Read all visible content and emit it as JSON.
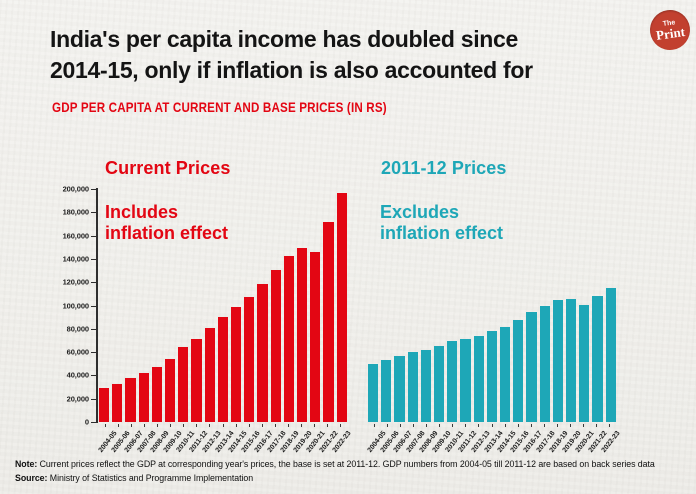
{
  "title": {
    "line1": "India's per capita income has doubled since",
    "line2": "2014-15, only if inflation is also accounted for"
  },
  "subtitle": "GDP PER CAPITA AT CURRENT AND BASE PRICES (IN RS)",
  "logo": {
    "top": "The",
    "bottom": "Print",
    "bg_color": "#c2402f"
  },
  "colors": {
    "red": "#e30613",
    "teal": "#1ea7b7",
    "ink": "#141414",
    "paper": "#f2f1ed"
  },
  "left_chart": {
    "header": "Current Prices",
    "annotation_line1": "Includes",
    "annotation_line2": "inflation effect"
  },
  "right_chart": {
    "header": "2011-12 Prices",
    "annotation_line1": "Excludes",
    "annotation_line2": "inflation effect"
  },
  "chart_data": [
    {
      "type": "bar",
      "title": "Current Prices",
      "annotation": "Includes inflation effect",
      "color": "#e30613",
      "ylim": [
        0,
        200000
      ],
      "yticks": [
        0,
        20000,
        40000,
        60000,
        80000,
        100000,
        120000,
        140000,
        160000,
        180000,
        200000
      ],
      "grid": false,
      "categories": [
        "2004-05",
        "2005-06",
        "2006-07",
        "2007-08",
        "2008-09",
        "2009-10",
        "2010-11",
        "2011-12",
        "2012-13",
        "2013-14",
        "2014-15",
        "2015-16",
        "2016-17",
        "2017-18",
        "2018-19",
        "2019-20",
        "2020-21",
        "2021-22",
        "2022-23"
      ],
      "values": [
        29500,
        33000,
        38000,
        42500,
        47500,
        54500,
        64000,
        71600,
        80500,
        89800,
        98400,
        107300,
        118300,
        130100,
        142300,
        149700,
        146300,
        172000,
        197000
      ]
    },
    {
      "type": "bar",
      "title": "2011-12 Prices",
      "annotation": "Excludes inflation effect",
      "color": "#1ea7b7",
      "ylim": [
        0,
        200000
      ],
      "yticks": [],
      "grid": false,
      "categories": [
        "2004-05",
        "2005-06",
        "2006-07",
        "2007-08",
        "2008-09",
        "2009-10",
        "2010-11",
        "2011-12",
        "2012-13",
        "2013-14",
        "2014-15",
        "2015-16",
        "2016-17",
        "2017-18",
        "2018-19",
        "2019-20",
        "2020-21",
        "2021-22",
        "2022-23"
      ],
      "values": [
        50000,
        53500,
        57000,
        60500,
        62000,
        65500,
        69500,
        71600,
        74000,
        78000,
        82000,
        88000,
        94500,
        99500,
        104500,
        106000,
        100500,
        108000,
        115000
      ]
    }
  ],
  "footer": {
    "note_label": "Note:",
    "note_text": " Current prices reflect the GDP at corresponding year's prices, the base is set at 2011-12. GDP numbers from 2004-05 till 2011-12 are based on back series data",
    "source_label": "Source:",
    "source_text": " Ministry of Statistics and Programme Implementation"
  }
}
